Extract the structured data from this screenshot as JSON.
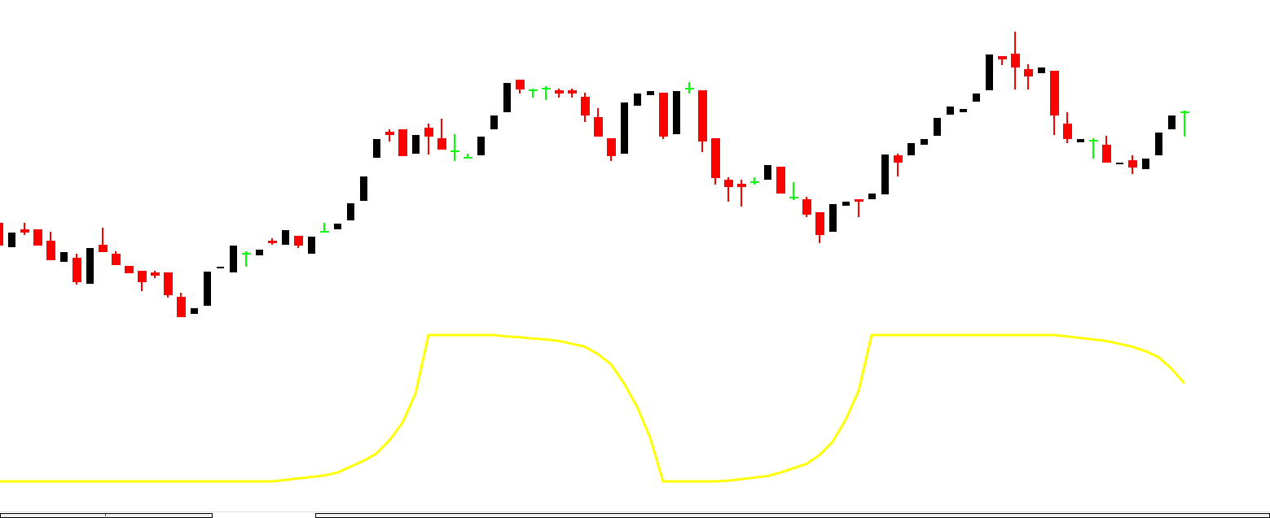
{
  "chart_data": {
    "type": "candlestick",
    "title": "",
    "xlabel": "",
    "ylabel": "",
    "grid": false,
    "colors": {
      "bullish": "#000000",
      "bearish": "#ff0000",
      "doji": "#00ff00",
      "indicator": "#ffff00",
      "background": "#ffffff"
    },
    "price_units_note": "",
    "ohlc_fields": [
      "open",
      "high",
      "low",
      "close"
    ],
    "candles": [
      [
        226,
        226,
        198,
        198
      ],
      [
        196,
        214,
        196,
        214
      ],
      [
        218,
        226,
        211,
        214
      ],
      [
        218,
        218,
        198,
        198
      ],
      [
        204,
        215,
        180,
        180
      ],
      [
        178,
        190,
        178,
        190
      ],
      [
        183,
        188,
        150,
        153
      ],
      [
        151,
        195,
        151,
        195
      ],
      [
        199,
        220,
        190,
        190
      ],
      [
        188,
        191,
        174,
        174
      ],
      [
        173,
        173,
        164,
        164
      ],
      [
        167,
        167,
        142,
        153
      ],
      [
        165,
        167,
        158,
        161
      ],
      [
        165,
        165,
        134,
        137
      ],
      [
        135,
        140,
        110,
        110
      ],
      [
        114,
        121,
        114,
        121
      ],
      [
        124,
        166,
        124,
        166
      ],
      [
        170,
        172,
        170,
        172
      ],
      [
        165,
        198,
        165,
        198
      ],
      [
        188,
        191,
        172,
        188
      ],
      [
        186,
        193,
        186,
        193
      ],
      [
        204,
        207,
        199,
        201
      ],
      [
        199,
        217,
        199,
        217
      ],
      [
        210,
        210,
        195,
        198
      ],
      [
        188,
        209,
        188,
        209
      ],
      [
        215,
        226,
        215,
        215
      ],
      [
        218,
        225,
        218,
        225
      ],
      [
        229,
        250,
        229,
        250
      ],
      [
        253,
        283,
        253,
        283
      ],
      [
        306,
        329,
        306,
        329
      ],
      [
        338,
        341,
        326,
        334
      ],
      [
        341,
        341,
        308,
        308
      ],
      [
        311,
        334,
        311,
        334
      ],
      [
        343,
        348,
        310,
        332
      ],
      [
        330,
        354,
        316,
        316
      ],
      [
        314,
        335,
        302,
        314
      ],
      [
        306,
        311,
        306,
        306
      ],
      [
        309,
        332,
        309,
        332
      ],
      [
        341,
        358,
        341,
        358
      ],
      [
        362,
        398,
        362,
        398
      ],
      [
        402,
        402,
        385,
        390
      ],
      [
        389,
        391,
        380,
        389
      ],
      [
        391,
        394,
        377,
        391
      ],
      [
        389,
        391,
        380,
        385
      ],
      [
        389,
        391,
        380,
        385
      ],
      [
        381,
        386,
        350,
        358
      ],
      [
        356,
        367,
        332,
        332
      ],
      [
        330,
        330,
        302,
        308
      ],
      [
        311,
        374,
        311,
        374
      ],
      [
        370,
        385,
        370,
        385
      ],
      [
        383,
        388,
        383,
        388
      ],
      [
        386,
        386,
        329,
        332
      ],
      [
        335,
        388,
        335,
        388
      ],
      [
        391,
        399,
        385,
        391
      ],
      [
        389,
        389,
        313,
        326
      ],
      [
        330,
        330,
        273,
        281
      ],
      [
        279,
        282,
        252,
        270
      ],
      [
        274,
        279,
        246,
        270
      ],
      [
        276,
        282,
        273,
        276
      ],
      [
        279,
        297,
        279,
        297
      ],
      [
        295,
        295,
        262,
        262
      ],
      [
        257,
        276,
        254,
        257
      ],
      [
        255,
        258,
        233,
        236
      ],
      [
        239,
        239,
        201,
        211
      ],
      [
        215,
        249,
        215,
        249
      ],
      [
        247,
        252,
        247,
        252
      ],
      [
        255,
        255,
        233,
        252
      ],
      [
        255,
        262,
        255,
        262
      ],
      [
        261,
        310,
        261,
        310
      ],
      [
        309,
        311,
        283,
        300
      ],
      [
        309,
        324,
        309,
        324
      ],
      [
        322,
        329,
        322,
        329
      ],
      [
        333,
        355,
        333,
        355
      ],
      [
        359,
        369,
        359,
        369
      ],
      [
        362,
        366,
        362,
        366
      ],
      [
        375,
        385,
        375,
        385
      ],
      [
        389,
        433,
        389,
        433
      ],
      [
        431,
        431,
        420,
        427
      ],
      [
        434,
        461,
        390,
        417
      ],
      [
        415,
        421,
        390,
        406
      ],
      [
        410,
        417,
        410,
        417
      ],
      [
        413,
        413,
        334,
        358
      ],
      [
        348,
        362,
        324,
        329
      ],
      [
        325,
        329,
        325,
        329
      ],
      [
        327,
        330,
        305,
        327
      ],
      [
        322,
        333,
        300,
        300
      ],
      [
        298,
        300,
        298,
        300
      ],
      [
        303,
        309,
        286,
        294
      ],
      [
        292,
        305,
        292,
        305
      ],
      [
        309,
        337,
        309,
        337
      ],
      [
        341,
        358,
        341,
        358
      ],
      [
        362,
        364,
        332,
        362
      ]
    ],
    "indicator": {
      "ylim": [
        0,
        100
      ],
      "values": [
        0,
        0,
        0,
        0,
        0,
        0,
        0,
        0,
        0,
        0,
        0,
        0,
        0,
        0,
        0,
        0,
        0,
        0,
        0,
        0,
        0,
        0,
        1,
        2,
        3,
        4,
        6,
        10,
        14,
        19,
        28,
        40,
        60,
        100,
        100,
        100,
        100,
        100,
        100,
        99,
        98.5,
        97.6,
        97,
        96,
        94,
        92,
        87,
        80,
        67,
        51,
        30,
        0,
        0,
        0,
        0,
        0,
        0.5,
        1.5,
        2.6,
        3.7,
        6,
        9,
        12,
        18,
        27,
        42,
        62,
        100,
        100,
        100,
        100,
        100,
        100,
        100,
        100,
        100,
        100,
        100,
        100,
        100,
        100,
        100,
        99,
        98,
        97,
        96,
        94,
        92,
        89,
        85,
        77,
        67
      ]
    }
  }
}
